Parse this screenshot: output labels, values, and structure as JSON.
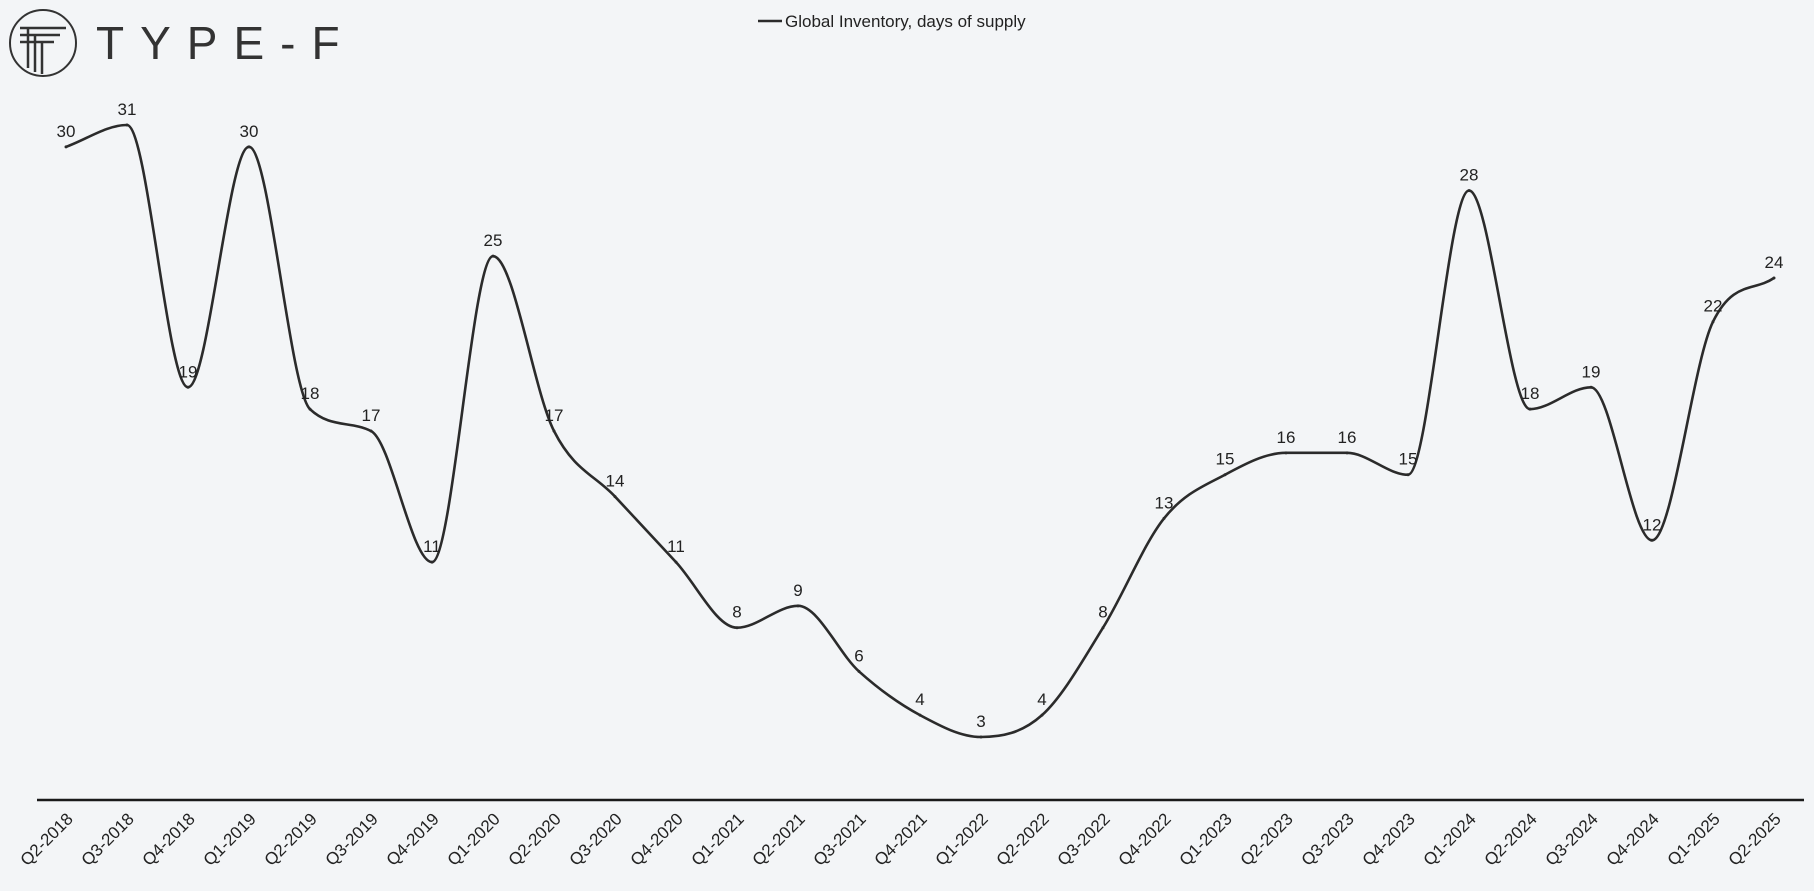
{
  "logo": {
    "text": "TYPE-F"
  },
  "chart_data": {
    "type": "line",
    "title": "",
    "xlabel": "",
    "ylabel": "",
    "legend_position": "top-center",
    "grid": false,
    "ylim": [
      0,
      33
    ],
    "categories": [
      "Q2-2018",
      "Q3-2018",
      "Q4-2018",
      "Q1-2019",
      "Q2-2019",
      "Q3-2019",
      "Q4-2019",
      "Q1-2020",
      "Q2-2020",
      "Q3-2020",
      "Q4-2020",
      "Q1-2021",
      "Q2-2021",
      "Q3-2021",
      "Q4-2021",
      "Q1-2022",
      "Q2-2022",
      "Q3-2022",
      "Q4-2022",
      "Q1-2023",
      "Q2-2023",
      "Q3-2023",
      "Q4-2023",
      "Q1-2024",
      "Q2-2024",
      "Q3-2024",
      "Q4-2024",
      "Q1-2025",
      "Q2-2025"
    ],
    "series": [
      {
        "name": "Global Inventory, days of supply",
        "color": "#2b2b2b",
        "values": [
          30,
          31,
          19,
          30,
          18,
          17,
          11,
          25,
          17,
          14,
          11,
          8,
          9,
          6,
          4,
          3,
          4,
          8,
          13,
          15,
          16,
          16,
          15,
          28,
          18,
          19,
          12,
          22,
          24
        ]
      }
    ]
  }
}
